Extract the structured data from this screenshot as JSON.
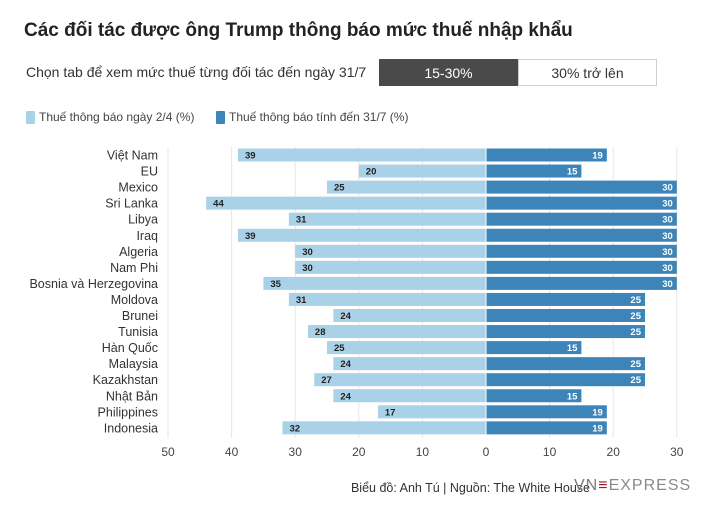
{
  "page": {
    "title": "Các đối tác được ông Trump thông báo mức thuế nhập khẩu",
    "tab_prompt": "Chọn tab để xem mức thuế từng đối tác đến ngày 31/7",
    "tabs": [
      {
        "label": "15-30%",
        "active": true
      },
      {
        "label": "30% trở lên",
        "active": false
      }
    ],
    "footer": "Biểu đồ: Anh Tú | Nguồn: The White House",
    "logo": {
      "part1": "VN",
      "part2": "EXPRESS"
    }
  },
  "colors": {
    "light_blue": "#a9d1e8",
    "dark_blue": "#3d84b8",
    "grid": "#e6e6e6",
    "axis_text": "#444444",
    "tab_active_bg": "#4a4a4a",
    "logo_accent": "#9b1c31"
  },
  "chart_data": {
    "type": "bar",
    "orientation": "horizontal-diverging",
    "categories": [
      "Việt Nam",
      "EU",
      "Mexico",
      "Sri Lanka",
      "Libya",
      "Iraq",
      "Algeria",
      "Nam Phi",
      "Bosnia và Herzegovina",
      "Moldova",
      "Brunei",
      "Tunisia",
      "Hàn Quốc",
      "Malaysia",
      "Kazakhstan",
      "Nhật Bản",
      "Philippines",
      "Indonesia"
    ],
    "series": [
      {
        "name": "Thuế thông báo ngày 2/4 (%)",
        "side": "left",
        "color": "#a9d1e8",
        "values": [
          39,
          20,
          25,
          44,
          31,
          39,
          30,
          30,
          35,
          31,
          24,
          28,
          25,
          24,
          27,
          24,
          17,
          32
        ]
      },
      {
        "name": "Thuế thông báo tính đến 31/7 (%)",
        "side": "right",
        "color": "#3d84b8",
        "values": [
          19,
          15,
          30,
          30,
          30,
          30,
          30,
          30,
          30,
          25,
          25,
          25,
          15,
          25,
          25,
          15,
          19,
          19
        ]
      }
    ],
    "xlim_left": [
      50,
      0
    ],
    "xlim_right": [
      0,
      30
    ],
    "ticks": [
      "50",
      "40",
      "30",
      "20",
      "10",
      "0",
      "10",
      "20",
      "30"
    ],
    "grid": true,
    "legend_position": "top-left"
  }
}
